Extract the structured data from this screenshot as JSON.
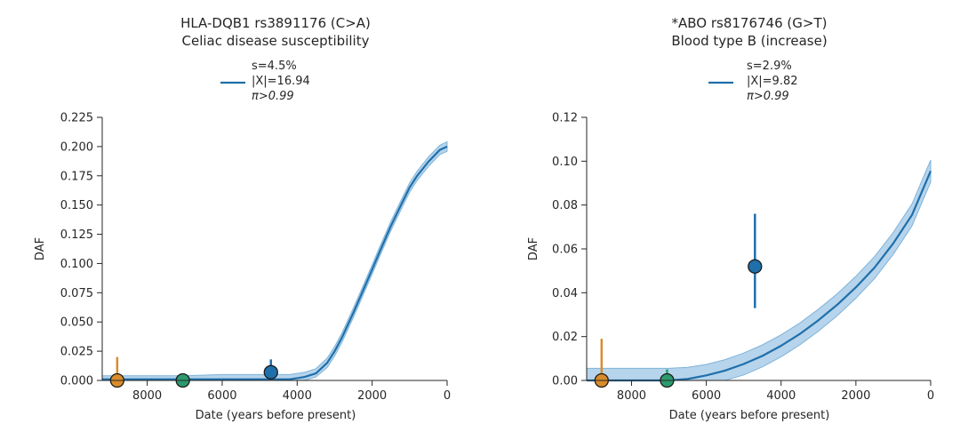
{
  "chart_data": [
    {
      "type": "line",
      "title": "HLA-DQB1 rs3891176 (C>A)",
      "subtitle": "Celiac disease susceptibility",
      "xlabel": "Date (years before present)",
      "ylabel": "DAF",
      "xlim": [
        9200,
        0
      ],
      "ylim": [
        0,
        0.225
      ],
      "xticks": [
        8000,
        6000,
        4000,
        2000,
        0
      ],
      "yticks": [
        0.0,
        0.025,
        0.05,
        0.075,
        0.1,
        0.125,
        0.15,
        0.175,
        0.2,
        0.225
      ],
      "ytick_labels": [
        "0.000",
        "0.025",
        "0.050",
        "0.075",
        "0.100",
        "0.125",
        "0.150",
        "0.175",
        "0.200",
        "0.225"
      ],
      "xtick_labels": [
        "8000",
        "6000",
        "4000",
        "2000",
        "0"
      ],
      "legend": {
        "placement": "top-center",
        "lines": [
          "s=4.5%",
          "|X|=16.94",
          "π>0.99"
        ]
      },
      "series": [
        {
          "name": "DAF trajectory",
          "color": "#1f6fab",
          "band_color": "#a9cde8",
          "x": [
            9200,
            8800,
            8000,
            7000,
            6000,
            5000,
            4500,
            4200,
            4000,
            3800,
            3500,
            3200,
            3000,
            2800,
            2500,
            2200,
            2000,
            1800,
            1500,
            1200,
            1000,
            800,
            500,
            200,
            0
          ],
          "y": [
            0.001,
            0.001,
            0.001,
            0.001,
            0.001,
            0.001,
            0.001,
            0.001,
            0.002,
            0.003,
            0.006,
            0.015,
            0.025,
            0.037,
            0.058,
            0.08,
            0.095,
            0.11,
            0.132,
            0.152,
            0.165,
            0.175,
            0.187,
            0.197,
            0.2
          ],
          "lower": [
            0.0,
            0.0,
            0.0,
            0.0,
            0.0,
            0.0,
            0.0,
            0.0,
            0.0,
            0.0,
            0.003,
            0.011,
            0.021,
            0.033,
            0.054,
            0.076,
            0.091,
            0.106,
            0.128,
            0.148,
            0.161,
            0.171,
            0.183,
            0.193,
            0.196
          ],
          "upper": [
            0.004,
            0.004,
            0.004,
            0.004,
            0.005,
            0.005,
            0.005,
            0.005,
            0.006,
            0.007,
            0.01,
            0.019,
            0.029,
            0.041,
            0.062,
            0.084,
            0.099,
            0.114,
            0.136,
            0.156,
            0.169,
            0.179,
            0.191,
            0.201,
            0.204
          ]
        }
      ],
      "points": [
        {
          "name": "sample-orange",
          "x": 8800,
          "y": 0.0,
          "err_low": 0.0,
          "err_high": 0.02,
          "color": "#d98c2b"
        },
        {
          "name": "sample-green",
          "x": 7050,
          "y": 0.0,
          "err_low": 0.0,
          "err_high": 0.0,
          "color": "#2b9a6e"
        },
        {
          "name": "sample-blue",
          "x": 4700,
          "y": 0.007,
          "err_low": 0.0,
          "err_high": 0.018,
          "color": "#1f6fab"
        }
      ]
    },
    {
      "type": "line",
      "title": "*ABO rs8176746 (G>T)",
      "subtitle": "Blood type B (increase)",
      "xlabel": "Date (years before present)",
      "ylabel": "DAF",
      "xlim": [
        9200,
        0
      ],
      "ylim": [
        0,
        0.12
      ],
      "xticks": [
        8000,
        6000,
        4000,
        2000,
        0
      ],
      "yticks": [
        0.0,
        0.02,
        0.04,
        0.06,
        0.08,
        0.1,
        0.12
      ],
      "ytick_labels": [
        "0.00",
        "0.02",
        "0.04",
        "0.06",
        "0.08",
        "0.10",
        "0.12"
      ],
      "xtick_labels": [
        "8000",
        "6000",
        "4000",
        "2000",
        "0"
      ],
      "legend": {
        "placement": "top-center",
        "lines": [
          "s=2.9%",
          "|X|=9.82",
          "π>0.99"
        ]
      },
      "series": [
        {
          "name": "DAF trajectory",
          "color": "#1f6fab",
          "band_color": "#a9cde8",
          "x": [
            9200,
            8800,
            8000,
            7200,
            7000,
            6500,
            6000,
            5500,
            5000,
            4500,
            4000,
            3500,
            3000,
            2500,
            2000,
            1500,
            1000,
            500,
            0
          ],
          "y": [
            0.0,
            0.0,
            0.0,
            0.0,
            0.0,
            0.0007,
            0.0023,
            0.0045,
            0.0075,
            0.0112,
            0.0158,
            0.0212,
            0.0275,
            0.0345,
            0.0425,
            0.0515,
            0.0625,
            0.0755,
            0.0955
          ],
          "lower": [
            0.0,
            0.0,
            0.0,
            0.0,
            0.0,
            0.0,
            0.0,
            0.0,
            0.0025,
            0.0062,
            0.0108,
            0.0162,
            0.0225,
            0.0295,
            0.0375,
            0.0465,
            0.0575,
            0.0705,
            0.0905
          ],
          "upper": [
            0.0055,
            0.0055,
            0.0055,
            0.0055,
            0.0055,
            0.006,
            0.0073,
            0.0095,
            0.0125,
            0.0162,
            0.0208,
            0.0262,
            0.0325,
            0.0395,
            0.0475,
            0.0565,
            0.0675,
            0.0805,
            0.1005
          ]
        }
      ],
      "points": [
        {
          "name": "sample-orange",
          "x": 8800,
          "y": 0.0,
          "err_low": 0.0,
          "err_high": 0.019,
          "color": "#d98c2b"
        },
        {
          "name": "sample-green",
          "x": 7050,
          "y": 0.0,
          "err_low": 0.0,
          "err_high": 0.005,
          "color": "#2b9a6e"
        },
        {
          "name": "sample-blue",
          "x": 4700,
          "y": 0.052,
          "err_low": 0.033,
          "err_high": 0.076,
          "color": "#1f6fab"
        }
      ]
    }
  ]
}
